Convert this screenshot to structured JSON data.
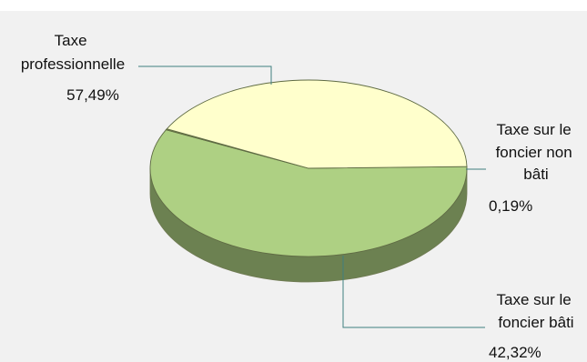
{
  "chart_data": {
    "type": "pie",
    "title": "",
    "slices": [
      {
        "label": "Taxe professionnelle",
        "value": 57.49,
        "value_text": "57,49%",
        "color": "#aed083"
      },
      {
        "label": "Taxe sur le foncier non bâti",
        "value": 0.19,
        "value_text": "0,19%",
        "color": "#8a9a4e"
      },
      {
        "label": "Taxe sur le foncier bâti",
        "value": 42.32,
        "value_text": "42,32%",
        "color": "#ffffcc"
      }
    ],
    "label_lines": [
      [
        "Taxe",
        "professionnelle"
      ],
      [
        "Taxe sur le",
        "foncier non",
        "bâti"
      ],
      [
        "Taxe sur le",
        "foncier bâti"
      ]
    ],
    "style": "3d",
    "legend": "none",
    "background": "#f1f1f1"
  }
}
